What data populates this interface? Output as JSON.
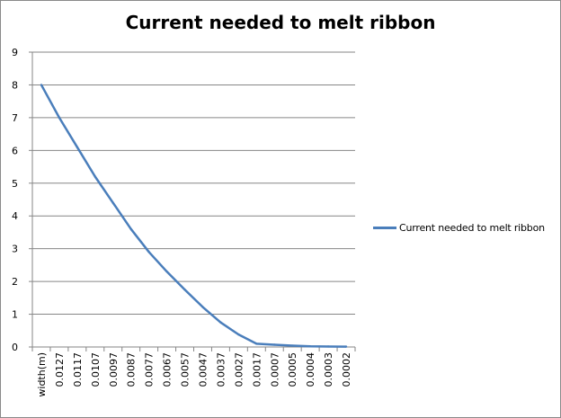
{
  "chart_data": {
    "type": "line",
    "title": "Current needed to melt ribbon",
    "xlabel": "",
    "ylabel": "",
    "categories": [
      "width(m)",
      "0.0127",
      "0.0117",
      "0.0107",
      "0.0097",
      "0.0087",
      "0.0077",
      "0.0067",
      "0.0057",
      "0.0047",
      "0.0037",
      "0.0027",
      "0.0017",
      "0.0007",
      "0.0005",
      "0.0004",
      "0.0003",
      "0.0002"
    ],
    "series": [
      {
        "name": "Current needed to melt ribbon",
        "color": "#4a7ebb",
        "values": [
          8.0,
          7.0,
          6.1,
          5.2,
          4.4,
          3.6,
          2.9,
          2.3,
          1.75,
          1.22,
          0.75,
          0.38,
          0.1,
          0.07,
          0.04,
          0.02,
          0.015,
          0.01
        ]
      }
    ],
    "ylim": [
      0,
      9
    ],
    "yticks": [
      "0",
      "1",
      "2",
      "3",
      "4",
      "5",
      "6",
      "7",
      "8",
      "9"
    ],
    "grid": true,
    "legend_position": "right"
  }
}
